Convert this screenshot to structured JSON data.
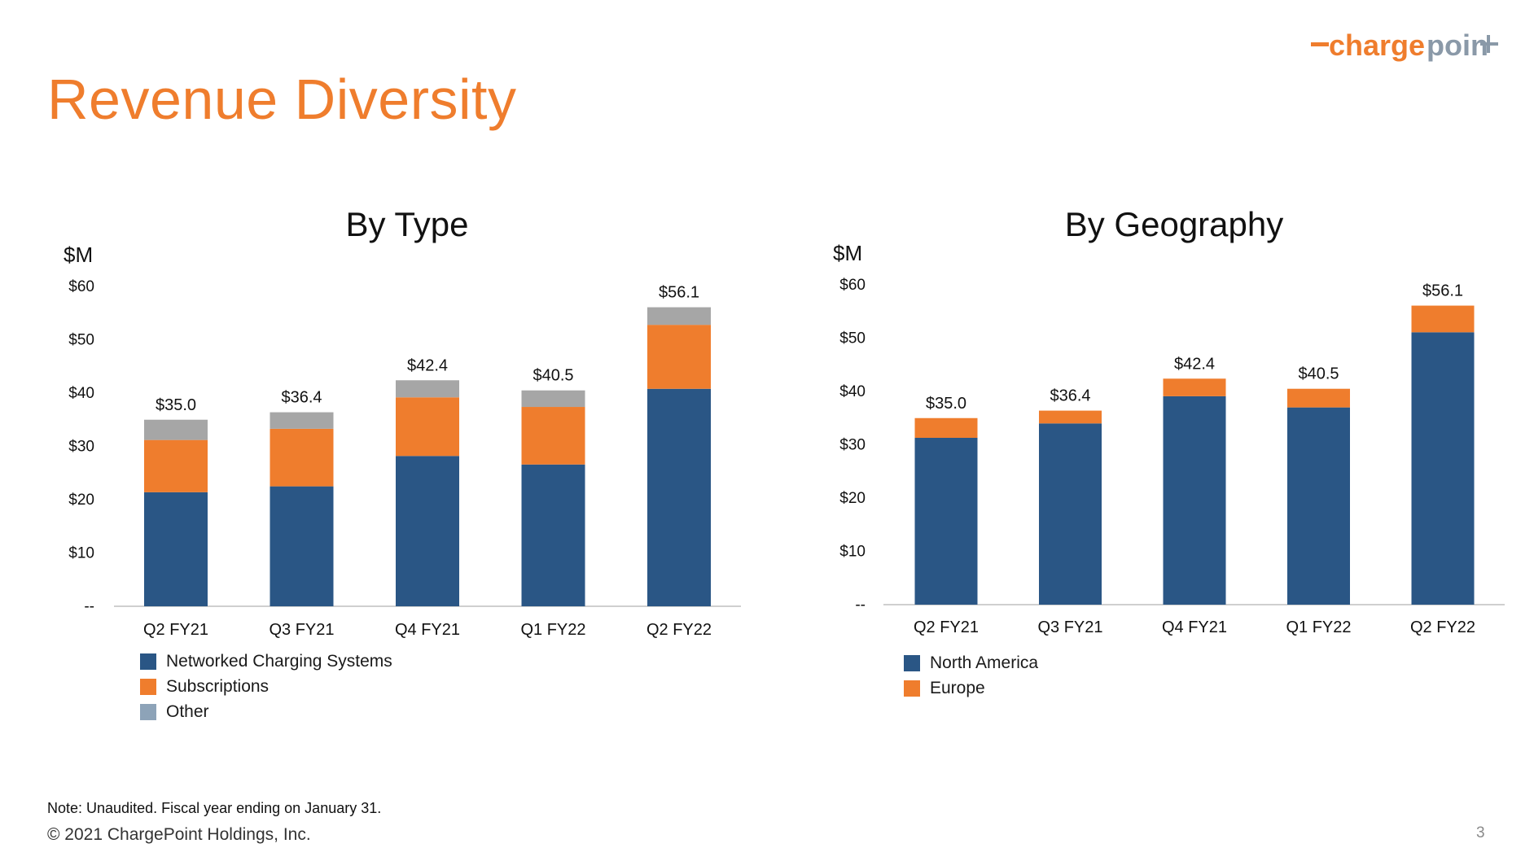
{
  "page": {
    "title": "Revenue Diversity",
    "logo_text": "chargepoint",
    "note": "Note: Unaudited. Fiscal year ending on January 31.",
    "copyright": "© 2021 ChargePoint Holdings, Inc.",
    "page_number": "3"
  },
  "colors": {
    "title": "#ef7d2d",
    "navy": "#2a5685",
    "orange": "#ef7d2d",
    "gray": "#a6a6a6",
    "legend_gray": "#8da3b8"
  },
  "chart_data": [
    {
      "type": "bar",
      "stacked": true,
      "title": "By Type",
      "ylabel": "$M",
      "categories": [
        "Q2 FY21",
        "Q3 FY21",
        "Q4 FY21",
        "Q1 FY22",
        "Q2 FY22"
      ],
      "yticks": [
        "--",
        "$10",
        "$20",
        "$30",
        "$40",
        "$50",
        "$60"
      ],
      "ylim": [
        0,
        60
      ],
      "totals": [
        "$35.0",
        "$36.4",
        "$42.4",
        "$40.5",
        "$56.1"
      ],
      "series": [
        {
          "name": "Networked Charging Systems",
          "values": [
            21.4,
            22.5,
            28.2,
            26.6,
            40.8
          ]
        },
        {
          "name": "Subscriptions",
          "values": [
            9.8,
            10.8,
            11.0,
            10.8,
            12.0
          ]
        },
        {
          "name": "Other",
          "values": [
            3.8,
            3.1,
            3.2,
            3.1,
            3.3
          ]
        }
      ],
      "legend": "bottom-left",
      "grid": false
    },
    {
      "type": "bar",
      "stacked": true,
      "title": "By Geography",
      "ylabel": "$M",
      "categories": [
        "Q2 FY21",
        "Q3 FY21",
        "Q4 FY21",
        "Q1 FY22",
        "Q2 FY22"
      ],
      "yticks": [
        "--",
        "$10",
        "$20",
        "$30",
        "$40",
        "$50",
        "$60"
      ],
      "ylim": [
        0,
        60
      ],
      "totals": [
        "$35.0",
        "$36.4",
        "$42.4",
        "$40.5",
        "$56.1"
      ],
      "series": [
        {
          "name": "North America",
          "values": [
            31.3,
            34.0,
            39.1,
            37.0,
            51.1
          ]
        },
        {
          "name": "Europe",
          "values": [
            3.7,
            2.4,
            3.3,
            3.5,
            5.0
          ]
        }
      ],
      "legend": "bottom-left",
      "grid": false
    }
  ]
}
